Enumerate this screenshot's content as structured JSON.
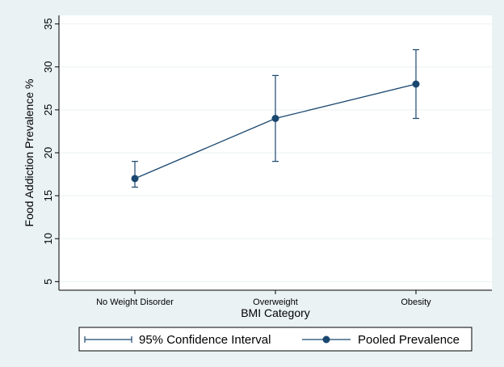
{
  "colors": {
    "outer_background": "#eaf2f3",
    "plot_background": "#ffffff",
    "gridline": "#eaf2f3",
    "series": "#1a476f"
  },
  "chart_data": {
    "type": "line",
    "title": "",
    "xlabel": "BMI Category",
    "ylabel": "Food Addiction Prevalence %",
    "categories": [
      "No Weight Disorder",
      "Overweight",
      "Obesity"
    ],
    "ylim": [
      4,
      36
    ],
    "yticks": [
      5,
      10,
      15,
      20,
      25,
      30,
      35
    ],
    "grid": true,
    "legend_position": "bottom",
    "series": [
      {
        "name": "Pooled Prevalence",
        "marker": "circle",
        "values": [
          17,
          24,
          28
        ]
      },
      {
        "name": "95% Confidence Interval",
        "type": "errorbar",
        "lower": [
          16,
          19,
          24
        ],
        "upper": [
          19,
          29,
          32
        ]
      }
    ]
  }
}
